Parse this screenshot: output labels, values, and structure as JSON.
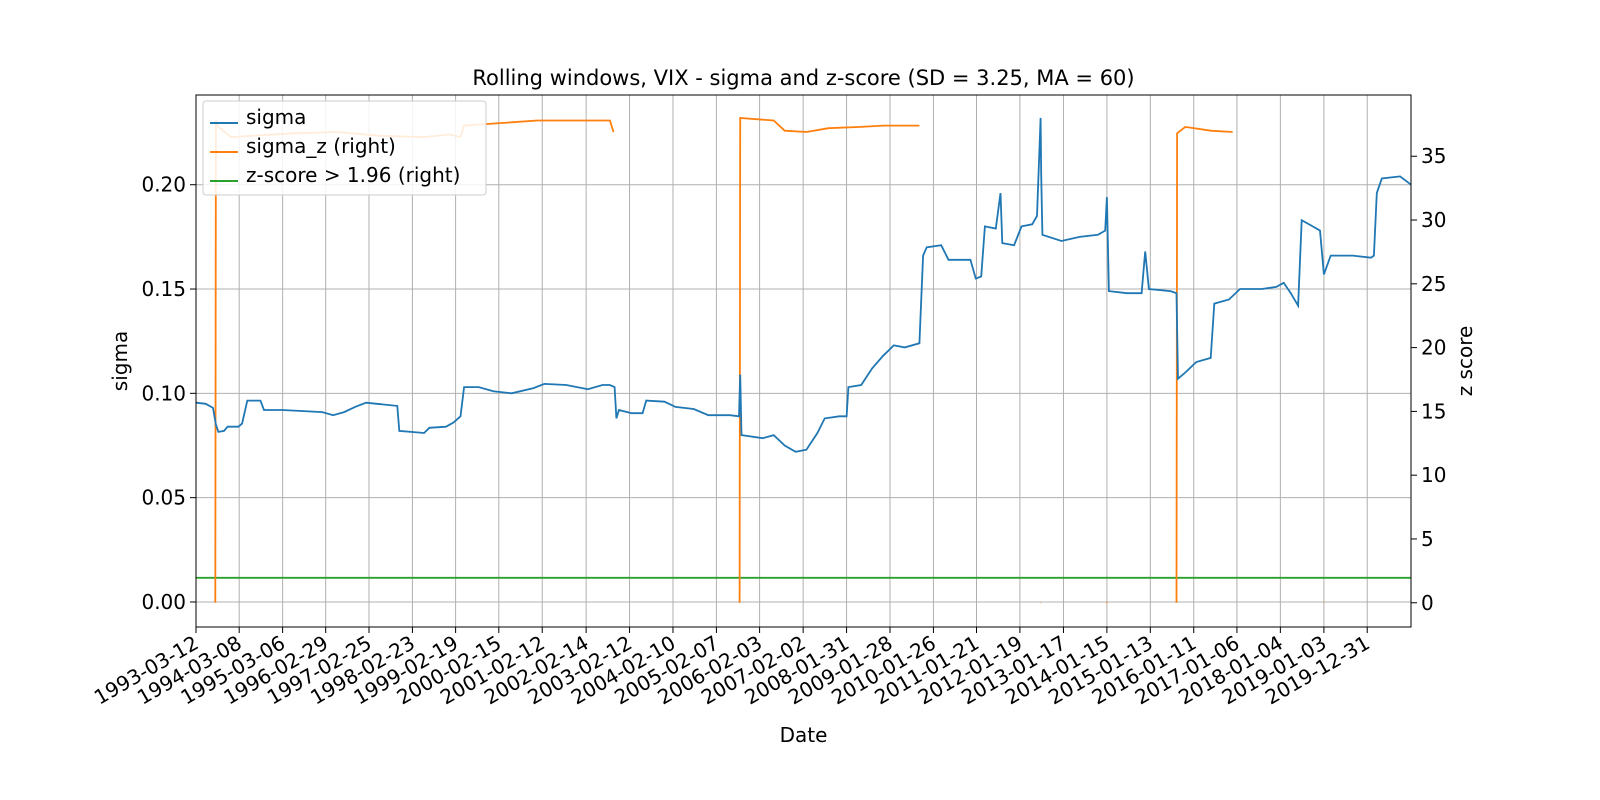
{
  "chart_data": {
    "type": "line",
    "title": "Rolling windows, VIX - sigma and z-score (SD = 3.25, MA = 60)",
    "xlabel": "Date",
    "ylabel": "sigma",
    "ylabel_right": "z score",
    "xlim": [
      "1993-03-12",
      "2020-12-31"
    ],
    "ylim": [
      -0.012,
      0.243
    ],
    "ylim_right": [
      -1.9,
      39.8
    ],
    "grid": true,
    "legend_position": "upper-left",
    "x_ticks": [
      "1993-03-12",
      "1994-03-08",
      "1995-03-06",
      "1996-02-29",
      "1997-02-25",
      "1998-02-23",
      "1999-02-19",
      "2000-02-15",
      "2001-02-12",
      "2002-02-14",
      "2003-02-12",
      "2004-02-10",
      "2005-02-07",
      "2006-02-03",
      "2007-02-02",
      "2008-01-31",
      "2009-01-28",
      "2010-01-26",
      "2011-01-21",
      "2012-01-19",
      "2013-01-17",
      "2014-01-15",
      "2015-01-13",
      "2016-01-11",
      "2017-01-06",
      "2018-01-04",
      "2019-01-03",
      "2019-12-31"
    ],
    "y_ticks": [
      "0.00",
      "0.05",
      "0.10",
      "0.15",
      "0.20"
    ],
    "y_ticks_right": [
      "0",
      "5",
      "10",
      "15",
      "20",
      "25",
      "30",
      "35"
    ],
    "series": [
      {
        "name": "sigma",
        "axis": "left",
        "color": "#1f77b4",
        "points": [
          [
            "1993-03-12",
            0.0955
          ],
          [
            "1993-06-01",
            0.095
          ],
          [
            "1993-08-01",
            0.093
          ],
          [
            "1993-08-25",
            0.085
          ],
          [
            "1993-09-15",
            0.0815
          ],
          [
            "1993-11-01",
            0.082
          ],
          [
            "1993-12-01",
            0.084
          ],
          [
            "1994-03-01",
            0.084
          ],
          [
            "1994-04-01",
            0.0855
          ],
          [
            "1994-05-15",
            0.0965
          ],
          [
            "1994-09-01",
            0.0965
          ],
          [
            "1994-10-01",
            0.092
          ],
          [
            "1995-03-01",
            0.092
          ],
          [
            "1995-09-01",
            0.0915
          ],
          [
            "1996-02-01",
            0.091
          ],
          [
            "1996-05-01",
            0.0895
          ],
          [
            "1996-08-01",
            0.091
          ],
          [
            "1996-11-01",
            0.0935
          ],
          [
            "1997-02-01",
            0.0955
          ],
          [
            "1997-05-01",
            0.095
          ],
          [
            "1997-10-20",
            0.094
          ],
          [
            "1997-11-05",
            0.082
          ],
          [
            "1998-06-01",
            0.081
          ],
          [
            "1998-07-15",
            0.0835
          ],
          [
            "1998-12-01",
            0.084
          ],
          [
            "1999-02-01",
            0.086
          ],
          [
            "1999-04-01",
            0.089
          ],
          [
            "1999-05-01",
            0.103
          ],
          [
            "1999-09-01",
            0.103
          ],
          [
            "2000-01-01",
            0.101
          ],
          [
            "2000-06-01",
            0.1
          ],
          [
            "2000-12-01",
            0.1025
          ],
          [
            "2001-03-01",
            0.1045
          ],
          [
            "2001-09-01",
            0.104
          ],
          [
            "2002-03-01",
            0.102
          ],
          [
            "2002-07-01",
            0.104
          ],
          [
            "2002-09-01",
            0.104
          ],
          [
            "2002-10-10",
            0.103
          ],
          [
            "2002-10-25",
            0.088
          ],
          [
            "2002-11-15",
            0.092
          ],
          [
            "2003-03-01",
            0.0905
          ],
          [
            "2003-06-01",
            0.0905
          ],
          [
            "2003-07-01",
            0.0965
          ],
          [
            "2003-12-01",
            0.096
          ],
          [
            "2004-03-01",
            0.0935
          ],
          [
            "2004-08-01",
            0.0925
          ],
          [
            "2004-12-01",
            0.0895
          ],
          [
            "2005-06-01",
            0.0895
          ],
          [
            "2005-08-15",
            0.089
          ],
          [
            "2005-08-25",
            0.109
          ],
          [
            "2005-09-05",
            0.08
          ],
          [
            "2006-03-01",
            0.0785
          ],
          [
            "2006-06-01",
            0.08
          ],
          [
            "2006-09-01",
            0.075
          ],
          [
            "2006-12-01",
            0.072
          ],
          [
            "2007-03-01",
            0.073
          ],
          [
            "2007-06-01",
            0.081
          ],
          [
            "2007-08-01",
            0.088
          ],
          [
            "2007-12-01",
            0.089
          ],
          [
            "2008-01-31",
            0.089
          ],
          [
            "2008-02-15",
            0.103
          ],
          [
            "2008-06-01",
            0.104
          ],
          [
            "2008-09-01",
            0.112
          ],
          [
            "2008-12-01",
            0.118
          ],
          [
            "2009-03-01",
            0.123
          ],
          [
            "2009-06-01",
            0.122
          ],
          [
            "2009-10-01",
            0.124
          ],
          [
            "2009-11-01",
            0.166
          ],
          [
            "2009-12-01",
            0.17
          ],
          [
            "2010-04-01",
            0.171
          ],
          [
            "2010-06-01",
            0.164
          ],
          [
            "2010-12-01",
            0.164
          ],
          [
            "2011-01-15",
            0.155
          ],
          [
            "2011-03-01",
            0.156
          ],
          [
            "2011-04-01",
            0.18
          ],
          [
            "2011-07-01",
            0.179
          ],
          [
            "2011-08-10",
            0.196
          ],
          [
            "2011-08-25",
            0.172
          ],
          [
            "2011-12-01",
            0.171
          ],
          [
            "2012-02-01",
            0.18
          ],
          [
            "2012-05-01",
            0.181
          ],
          [
            "2012-06-10",
            0.185
          ],
          [
            "2012-07-10",
            0.232
          ],
          [
            "2012-07-15",
            0.205
          ],
          [
            "2012-07-25",
            0.176
          ],
          [
            "2013-01-01",
            0.173
          ],
          [
            "2013-06-01",
            0.175
          ],
          [
            "2013-11-01",
            0.176
          ],
          [
            "2014-01-01",
            0.178
          ],
          [
            "2014-01-15",
            0.194
          ],
          [
            "2014-02-01",
            0.149
          ],
          [
            "2014-07-01",
            0.148
          ],
          [
            "2014-11-01",
            0.148
          ],
          [
            "2014-12-01",
            0.168
          ],
          [
            "2015-01-01",
            0.15
          ],
          [
            "2015-07-01",
            0.149
          ],
          [
            "2015-08-20",
            0.148
          ],
          [
            "2015-09-01",
            0.107
          ],
          [
            "2015-11-01",
            0.11
          ],
          [
            "2016-02-01",
            0.115
          ],
          [
            "2016-06-01",
            0.117
          ],
          [
            "2016-07-01",
            0.143
          ],
          [
            "2016-11-01",
            0.145
          ],
          [
            "2017-02-01",
            0.15
          ],
          [
            "2017-08-01",
            0.15
          ],
          [
            "2017-12-01",
            0.151
          ],
          [
            "2018-02-01",
            0.153
          ],
          [
            "2018-04-01",
            0.148
          ],
          [
            "2018-06-01",
            0.142
          ],
          [
            "2018-07-01",
            0.183
          ],
          [
            "2018-10-01",
            0.18
          ],
          [
            "2018-12-01",
            0.178
          ],
          [
            "2019-01-03",
            0.157
          ],
          [
            "2019-03-01",
            0.166
          ],
          [
            "2019-09-01",
            0.166
          ],
          [
            "2020-02-01",
            0.165
          ],
          [
            "2020-02-25",
            0.166
          ],
          [
            "2020-03-20",
            0.196
          ],
          [
            "2020-05-01",
            0.203
          ],
          [
            "2020-10-01",
            0.204
          ],
          [
            "2020-12-31",
            0.2
          ]
        ]
      },
      {
        "name": "sigma_z (right)",
        "axis": "right",
        "color": "#ff7f0e",
        "segments": [
          [
            [
              "1993-08-20",
              0.0
            ],
            [
              "1993-08-25",
              37.8
            ],
            [
              "1993-09-15",
              37.3
            ],
            [
              "1994-01-01",
              36.5
            ],
            [
              "1995-06-01",
              36.8
            ],
            [
              "1996-06-01",
              36.9
            ],
            [
              "1997-06-01",
              36.6
            ],
            [
              "1998-06-01",
              36.5
            ],
            [
              "1999-01-01",
              36.7
            ],
            [
              "1999-04-01",
              36.5
            ],
            [
              "1999-05-01",
              37.4
            ],
            [
              "2001-01-01",
              37.8
            ],
            [
              "2002-06-01",
              37.8
            ],
            [
              "2002-09-01",
              37.8
            ],
            [
              "2002-10-01",
              36.9
            ]
          ],
          [
            [
              "2005-08-20",
              0.0
            ],
            [
              "2005-08-25",
              38.0
            ],
            [
              "2006-06-01",
              37.8
            ],
            [
              "2006-09-01",
              37.0
            ],
            [
              "2007-03-01",
              36.9
            ],
            [
              "2007-09-01",
              37.2
            ],
            [
              "2008-06-01",
              37.3
            ],
            [
              "2008-12-01",
              37.4
            ],
            [
              "2009-10-01",
              37.4
            ]
          ],
          [
            [
              "2012-07-10",
              0.0
            ],
            [
              "2012-07-12",
              0.0
            ]
          ],
          [
            [
              "2014-01-12",
              0.0
            ],
            [
              "2014-01-18",
              0.0
            ]
          ],
          [
            [
              "2015-08-20",
              0.0
            ],
            [
              "2015-08-25",
              36.8
            ],
            [
              "2015-11-01",
              37.3
            ],
            [
              "2016-06-01",
              37.0
            ],
            [
              "2016-12-01",
              36.9
            ]
          ],
          [
            [
              "2019-01-01",
              0.0
            ],
            [
              "2019-01-05",
              0.0
            ]
          ]
        ]
      },
      {
        "name": "z-score > 1.96 (right)",
        "axis": "right",
        "color": "#2ca02c",
        "points": [
          [
            "1993-03-12",
            1.96
          ],
          [
            "2020-12-31",
            1.96
          ]
        ]
      }
    ]
  }
}
